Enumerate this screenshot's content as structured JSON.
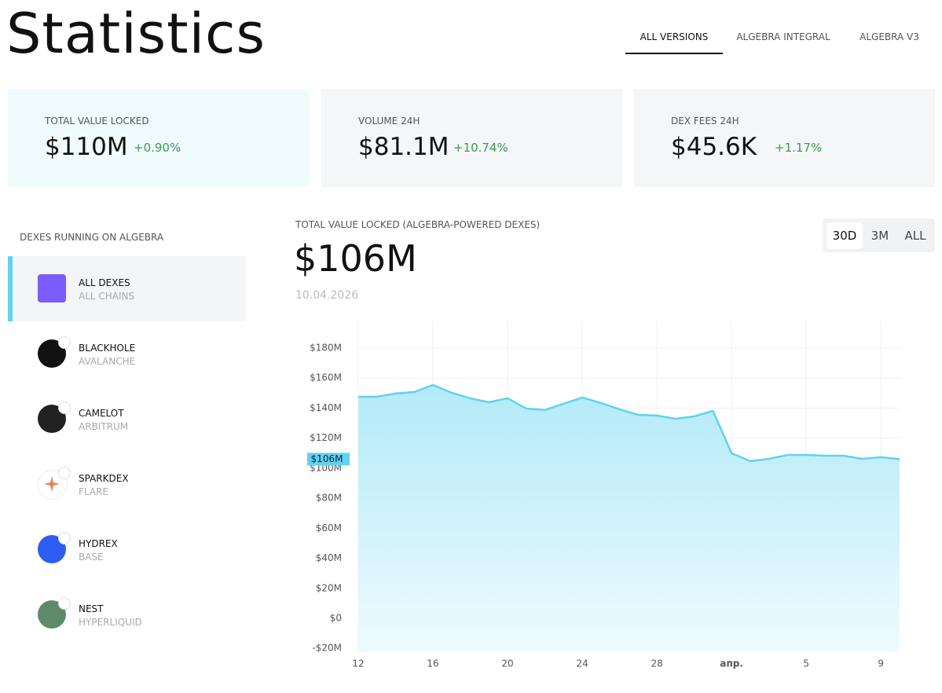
{
  "header": {
    "title": "Statistics",
    "tabs": [
      "ALL VERSIONS",
      "ALGEBRA INTEGRAL",
      "ALGEBRA V3"
    ],
    "active_tab": 0
  },
  "stats": [
    {
      "label": "TOTAL VALUE LOCKED",
      "value": "$110M",
      "change": "+0.90%"
    },
    {
      "label": "VOLUME 24H",
      "value": "$81.1M",
      "change": "+10.74%"
    },
    {
      "label": "DEX FEES 24H",
      "value": "$45.6K",
      "change": "+1.17%"
    }
  ],
  "sidebar": {
    "title": "DEXES RUNNING ON ALGEBRA",
    "selected": 0,
    "dexes": [
      {
        "name": "ALL DEXES",
        "chain": "ALL CHAINS"
      },
      {
        "name": "BLACKHOLE",
        "chain": "AVALANCHE"
      },
      {
        "name": "CAMELOT",
        "chain": "ARBITRUM"
      },
      {
        "name": "SPARKDEX",
        "chain": "FLARE"
      },
      {
        "name": "HYDREX",
        "chain": "BASE"
      },
      {
        "name": "NEST",
        "chain": "HYPERLIQUID"
      }
    ]
  },
  "chart_data": {
    "type": "area",
    "title": "TOTAL VALUE LOCKED (ALGEBRA-POWERED DEXES)",
    "value": "$106M",
    "date": "10.04.2026",
    "ranges": [
      "30D",
      "3M",
      "ALL"
    ],
    "active_range": 0,
    "categories": [
      "12",
      null,
      null,
      null,
      "16",
      null,
      null,
      null,
      "20",
      null,
      null,
      null,
      "24",
      null,
      null,
      null,
      "28",
      null,
      null,
      null,
      "апр.",
      null,
      null,
      null,
      "5",
      null,
      null,
      null,
      "9",
      null
    ],
    "values": [
      147.6,
      147.6,
      149.7,
      150.7,
      155.4,
      150.2,
      146.5,
      143.9,
      146.5,
      139.7,
      138.7,
      142.9,
      147.0,
      143.4,
      139.2,
      135.5,
      135.0,
      132.9,
      134.5,
      138.1,
      109.9,
      104.7,
      106.2,
      108.8,
      108.8,
      108.3,
      108.3,
      106.2,
      107.3,
      106
    ],
    "value_labels": [
      null,
      null,
      null,
      null,
      null,
      null,
      null,
      null,
      null,
      null,
      null,
      null,
      null,
      null,
      null,
      null,
      null,
      null,
      null,
      null,
      null,
      null,
      null,
      null,
      null,
      null,
      null,
      null,
      null,
      "$106M"
    ],
    "color": "#5fd3ef",
    "ylim": [
      -22.5,
      198
    ],
    "yticks": [
      {
        "value": -20,
        "label": "-$20M"
      },
      {
        "value": 0,
        "label": "$0"
      },
      {
        "value": 20,
        "label": "$20M"
      },
      {
        "value": 40,
        "label": "$40M"
      },
      {
        "value": 60,
        "label": "$60M"
      },
      {
        "value": 80,
        "label": "$80M"
      },
      {
        "value": 100,
        "label": "$100M"
      },
      {
        "value": 120,
        "label": "$120M"
      },
      {
        "value": 140,
        "label": "$140M"
      },
      {
        "value": 160,
        "label": "$160M"
      },
      {
        "value": 180,
        "label": "$180M"
      }
    ],
    "grid": true
  }
}
